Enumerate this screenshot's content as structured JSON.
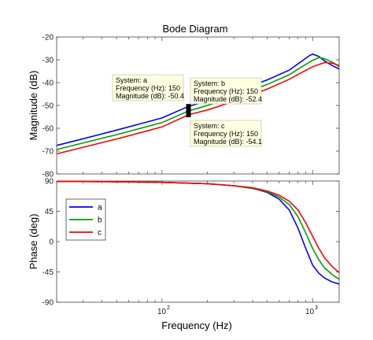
{
  "chart_data": {
    "type": "line",
    "title": "Bode Diagram",
    "xlabel": "Frequency  (Hz)",
    "x_scale": "log",
    "xlim": [
      20,
      1500
    ],
    "x_tick_labels": [
      "10",
      "2",
      "10",
      "3"
    ],
    "subplots": [
      {
        "name": "magnitude",
        "ylabel": "Magnitude (dB)",
        "ylim": [
          -80,
          -20
        ],
        "y_ticks": [
          -80,
          -70,
          -60,
          -50,
          -40,
          -30,
          -20
        ],
        "y_tick_labels": [
          "-80",
          "-70",
          "-60",
          "-50",
          "-40",
          "-30",
          "-20"
        ]
      },
      {
        "name": "phase",
        "ylabel": "Phase (deg)",
        "ylim": [
          -90,
          90
        ],
        "y_ticks": [
          -90,
          -45,
          0,
          45,
          90
        ],
        "y_tick_labels": [
          "-90",
          "-45",
          "0",
          "45",
          "90"
        ]
      }
    ],
    "series": [
      {
        "name": "a",
        "color": "#0000ff",
        "magnitude": [
          [
            20,
            -67.5
          ],
          [
            30,
            -64.6
          ],
          [
            50,
            -60.8
          ],
          [
            80,
            -57.2
          ],
          [
            100,
            -55.5
          ],
          [
            150,
            -50.4
          ],
          [
            200,
            -48
          ],
          [
            300,
            -44.2
          ],
          [
            500,
            -38.8
          ],
          [
            700,
            -34.5
          ],
          [
            850,
            -30.5
          ],
          [
            950,
            -28.2
          ],
          [
            1000,
            -27.5
          ],
          [
            1100,
            -28.5
          ],
          [
            1200,
            -30.5
          ],
          [
            1350,
            -32.5
          ],
          [
            1500,
            -34
          ]
        ],
        "phase": [
          [
            20,
            89.5
          ],
          [
            50,
            89
          ],
          [
            100,
            88
          ],
          [
            200,
            86
          ],
          [
            300,
            83
          ],
          [
            400,
            79
          ],
          [
            500,
            73
          ],
          [
            600,
            63
          ],
          [
            700,
            47
          ],
          [
            800,
            20
          ],
          [
            900,
            -10
          ],
          [
            1000,
            -35
          ],
          [
            1100,
            -47
          ],
          [
            1200,
            -54
          ],
          [
            1350,
            -60
          ],
          [
            1500,
            -63
          ]
        ]
      },
      {
        "name": "b",
        "color": "#00a000",
        "magnitude": [
          [
            20,
            -69.3
          ],
          [
            30,
            -66.4
          ],
          [
            50,
            -62.8
          ],
          [
            80,
            -59.2
          ],
          [
            100,
            -57.5
          ],
          [
            150,
            -52.4
          ],
          [
            200,
            -50
          ],
          [
            300,
            -46.2
          ],
          [
            500,
            -40.8
          ],
          [
            700,
            -36.5
          ],
          [
            850,
            -33
          ],
          [
            1000,
            -30.2
          ],
          [
            1100,
            -29
          ],
          [
            1200,
            -29.5
          ],
          [
            1350,
            -31
          ],
          [
            1500,
            -33
          ]
        ],
        "phase": [
          [
            20,
            89.5
          ],
          [
            50,
            89
          ],
          [
            100,
            88
          ],
          [
            200,
            86
          ],
          [
            300,
            83
          ],
          [
            400,
            79
          ],
          [
            500,
            74
          ],
          [
            600,
            66
          ],
          [
            700,
            55
          ],
          [
            800,
            37
          ],
          [
            900,
            13
          ],
          [
            1000,
            -10
          ],
          [
            1100,
            -27
          ],
          [
            1200,
            -39
          ],
          [
            1350,
            -49
          ],
          [
            1500,
            -56
          ]
        ]
      },
      {
        "name": "c",
        "color": "#ff0000",
        "magnitude": [
          [
            20,
            -71.2
          ],
          [
            30,
            -68.3
          ],
          [
            50,
            -64.7
          ],
          [
            80,
            -61.1
          ],
          [
            100,
            -59.4
          ],
          [
            150,
            -54.1
          ],
          [
            200,
            -52
          ],
          [
            300,
            -48.2
          ],
          [
            500,
            -42.8
          ],
          [
            700,
            -38.5
          ],
          [
            850,
            -35.5
          ],
          [
            1000,
            -33
          ],
          [
            1200,
            -31.2
          ],
          [
            1350,
            -31.5
          ],
          [
            1500,
            -32.5
          ]
        ],
        "phase": [
          [
            20,
            89.5
          ],
          [
            50,
            89
          ],
          [
            100,
            88
          ],
          [
            200,
            86
          ],
          [
            300,
            83
          ],
          [
            400,
            80
          ],
          [
            500,
            75
          ],
          [
            600,
            69
          ],
          [
            700,
            60
          ],
          [
            800,
            47
          ],
          [
            900,
            28
          ],
          [
            1000,
            8
          ],
          [
            1100,
            -10
          ],
          [
            1200,
            -24
          ],
          [
            1350,
            -37
          ],
          [
            1500,
            -46
          ]
        ]
      }
    ],
    "legend": {
      "placement": "top-left of phase plot",
      "entries": [
        "a",
        "b",
        "c"
      ]
    },
    "annotations": [
      {
        "series": "a",
        "lines": [
          "System: a",
          "Frequency (Hz): 150",
          "Magnitude (dB): -50.4"
        ],
        "x": 150,
        "y": -50.4
      },
      {
        "series": "b",
        "lines": [
          "System: b",
          "Frequency (Hz): 150",
          "Magnitude (dB): -52.4"
        ],
        "x": 150,
        "y": -52.4
      },
      {
        "series": "c",
        "lines": [
          "System: c",
          "Frequency (Hz): 150",
          "Magnitude (dB): -54.1"
        ],
        "x": 150,
        "y": -54.1
      }
    ],
    "grid": false
  }
}
